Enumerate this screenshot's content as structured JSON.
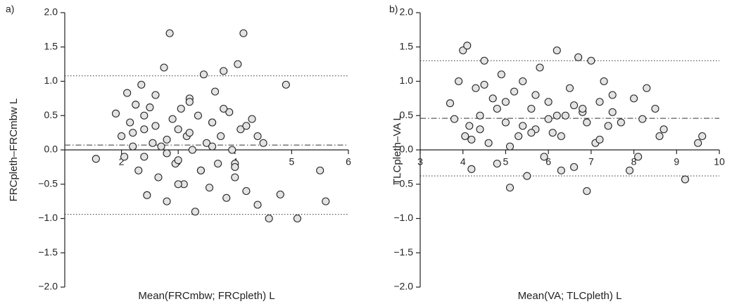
{
  "chart_data": [
    {
      "type": "scatter",
      "panel_label": "a)",
      "x_label": "Mean(FRCmbw; FRCpleth) L",
      "y_label": "FRCpleth–FRCmbw L",
      "xlim": [
        1,
        6
      ],
      "xticks": [
        2,
        3,
        4,
        5,
        6
      ],
      "ylim": [
        -2,
        2
      ],
      "yticks": [
        {
          "value": -2,
          "label": "−2.0"
        },
        {
          "value": -1.5,
          "label": "−1.5"
        },
        {
          "value": -1,
          "label": "−1.0"
        },
        {
          "value": -0.5,
          "label": "−0.5"
        },
        {
          "value": 0,
          "label": "0.0"
        },
        {
          "value": 0.5,
          "label": "0.5"
        },
        {
          "value": 1,
          "label": "1.0"
        },
        {
          "value": 1.5,
          "label": "1.5"
        },
        {
          "value": 2,
          "label": "2.0"
        }
      ],
      "reference_lines": [
        {
          "value": 0.07,
          "style": "dashdot"
        },
        {
          "value": 1.08,
          "style": "dotted"
        },
        {
          "value": -0.94,
          "style": "dotted"
        }
      ],
      "color": "#e3e3e3",
      "x": [
        1.55,
        1.9,
        2.0,
        2.05,
        2.1,
        2.15,
        2.2,
        2.25,
        2.3,
        2.35,
        2.4,
        2.45,
        2.5,
        2.55,
        2.6,
        2.65,
        2.7,
        2.75,
        2.8,
        2.85,
        2.9,
        2.95,
        3.0,
        3.05,
        3.1,
        3.15,
        3.2,
        3.25,
        3.3,
        3.35,
        3.4,
        3.45,
        3.5,
        3.55,
        3.6,
        3.65,
        3.7,
        3.75,
        3.8,
        3.85,
        3.9,
        3.95,
        4.0,
        4.05,
        4.1,
        4.15,
        4.2,
        4.3,
        4.4,
        4.5,
        4.6,
        4.8,
        4.9,
        5.1,
        5.5,
        5.6,
        2.2,
        2.4,
        2.6,
        2.8,
        3.0,
        3.2,
        3.4,
        3.6,
        3.8,
        4.0,
        4.2,
        2.4,
        2.8,
        3.2,
        3.6,
        4.0,
        4.4,
        3.0
      ],
      "values": [
        -0.13,
        0.53,
        0.2,
        -0.1,
        0.83,
        0.4,
        0.05,
        0.66,
        -0.3,
        0.95,
        0.3,
        -0.66,
        0.62,
        0.1,
        0.8,
        -0.4,
        0.05,
        1.2,
        -0.75,
        1.7,
        0.45,
        -0.2,
        0.3,
        0.6,
        -0.5,
        0.2,
        0.75,
        0.0,
        -0.9,
        0.5,
        -0.3,
        1.1,
        0.1,
        -0.55,
        0.4,
        0.85,
        -0.2,
        0.2,
        1.15,
        -0.7,
        0.55,
        0.0,
        -0.4,
        1.25,
        0.3,
        1.7,
        -0.6,
        0.45,
        -0.8,
        0.1,
        -1.0,
        -0.65,
        0.95,
        -1.0,
        -0.3,
        -0.75,
        0.25,
        -0.1,
        0.35,
        0.15,
        -0.15,
        0.7,
        -0.3,
        0.4,
        0.6,
        -0.2,
        0.35,
        0.5,
        -0.05,
        0.25,
        0.05,
        -0.25,
        0.2,
        -0.5
      ]
    },
    {
      "type": "scatter",
      "panel_label": "b)",
      "x_label": "Mean(VA; TLCpleth) L",
      "y_label": "TLCpleth–VA L",
      "xlim": [
        3,
        10
      ],
      "xticks": [
        3,
        4,
        5,
        6,
        7,
        8,
        9,
        10
      ],
      "ylim": [
        -2,
        2
      ],
      "yticks": [
        {
          "value": -2,
          "label": "−2.0"
        },
        {
          "value": -1.5,
          "label": "−1.5"
        },
        {
          "value": -1,
          "label": "−1.0"
        },
        {
          "value": -0.5,
          "label": "−0.5"
        },
        {
          "value": 0,
          "label": "0.0"
        },
        {
          "value": 0.5,
          "label": "0.5"
        },
        {
          "value": 1,
          "label": "1.0"
        },
        {
          "value": 1.5,
          "label": "1.5"
        },
        {
          "value": 2,
          "label": "2.0"
        }
      ],
      "reference_lines": [
        {
          "value": 0.46,
          "style": "dashdot"
        },
        {
          "value": 1.3,
          "style": "dotted"
        },
        {
          "value": -0.38,
          "style": "dotted"
        }
      ],
      "color": "#e3e3e3",
      "x": [
        3.7,
        3.8,
        3.9,
        4.0,
        4.05,
        4.1,
        4.15,
        4.2,
        4.3,
        4.4,
        4.5,
        4.6,
        4.7,
        4.8,
        4.9,
        5.0,
        5.1,
        5.2,
        5.3,
        5.4,
        5.5,
        5.6,
        5.7,
        5.8,
        5.9,
        6.0,
        6.1,
        6.2,
        6.3,
        6.4,
        6.5,
        6.6,
        6.7,
        6.8,
        6.9,
        7.0,
        7.1,
        7.2,
        7.3,
        7.5,
        7.7,
        7.9,
        8.0,
        8.1,
        8.3,
        8.5,
        8.6,
        8.7,
        9.2,
        9.6,
        4.2,
        4.5,
        4.8,
        5.1,
        5.4,
        5.7,
        6.0,
        6.3,
        6.6,
        6.9,
        7.2,
        7.5,
        4.4,
        5.0,
        5.6,
        6.2,
        6.8,
        7.4,
        8.2,
        9.5
      ],
      "values": [
        0.68,
        0.45,
        1.0,
        1.45,
        0.2,
        1.52,
        0.35,
        -0.28,
        0.9,
        0.5,
        1.3,
        0.1,
        0.75,
        -0.2,
        1.1,
        0.4,
        -0.55,
        0.85,
        0.2,
        1.0,
        -0.38,
        0.6,
        0.3,
        1.2,
        -0.1,
        0.7,
        0.25,
        1.45,
        -0.3,
        0.5,
        0.9,
        -0.25,
        1.35,
        0.55,
        -0.6,
        1.3,
        0.1,
        0.7,
        1.0,
        0.8,
        0.4,
        -0.3,
        0.75,
        -0.1,
        0.9,
        0.6,
        0.2,
        0.3,
        -0.43,
        0.2,
        0.15,
        0.95,
        0.6,
        0.05,
        0.35,
        0.8,
        0.45,
        0.2,
        0.65,
        0.4,
        0.15,
        0.55,
        0.3,
        0.7,
        0.25,
        0.5,
        0.6,
        0.35,
        0.45,
        0.1
      ]
    }
  ]
}
